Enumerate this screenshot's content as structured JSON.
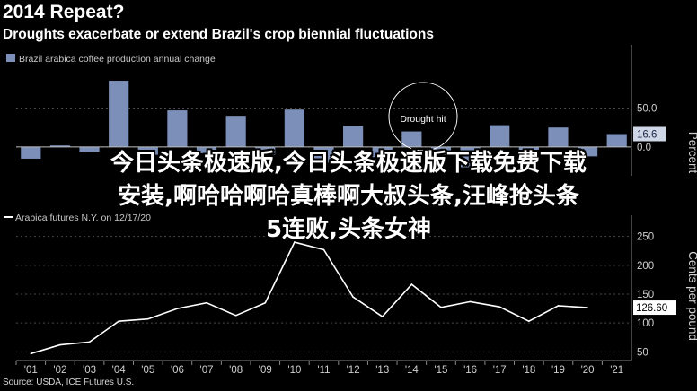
{
  "header": {
    "title": "2014 Repeat?",
    "subtitle": "Droughts exacerbate or extend Brazil's crop biennial fluctuations"
  },
  "source": "Source: USDA, ICE Futures U.S.",
  "overlay_text": {
    "line1": "今日头条极速版,今日头条极速版下载免费下载",
    "line2": "安装,啊哈哈啊哈真棒啊大叔头条,汪峰抢头条",
    "line3": "5连败,头条女神"
  },
  "chart_data": [
    {
      "type": "bar",
      "legend": "Brazil arabica coffee production annual change",
      "categories": [
        "'01",
        "'02",
        "'03",
        "'04",
        "'05",
        "'06",
        "'07",
        "'08",
        "'09",
        "'10",
        "'11",
        "'12",
        "'13",
        "'14",
        "'15",
        "'16",
        "'17",
        "'18",
        "'19",
        "'20",
        "'21"
      ],
      "values": [
        -15,
        2,
        -6,
        85,
        -10,
        47,
        -8,
        40,
        -10,
        48,
        -20,
        27,
        -13,
        20,
        -12,
        -26,
        28,
        -8,
        25,
        -12,
        16.6
      ],
      "ylabel": "Percent",
      "yticks": [
        50,
        0
      ],
      "ylim": [
        -30,
        100
      ],
      "last_value_label": "16.6",
      "annotation": "Drought hit",
      "color": "#7b8fb8"
    },
    {
      "type": "line",
      "legend": "Arabica futures N.Y. on 12/17/20",
      "x": [
        "'01",
        "'02",
        "'03",
        "'04",
        "'05",
        "'06",
        "'07",
        "'08",
        "'09",
        "'10",
        "'11",
        "'12",
        "'13",
        "'14",
        "'15",
        "'16",
        "'17",
        "'18",
        "'19",
        "'20"
      ],
      "values": [
        47,
        62,
        67,
        103,
        107,
        125,
        135,
        113,
        135,
        240,
        227,
        145,
        111,
        167,
        127,
        137,
        128,
        103,
        130,
        126.6
      ],
      "ylabel": "Cents per pound",
      "yticks": [
        50,
        100,
        150,
        200,
        250
      ],
      "ylim": [
        35,
        265
      ],
      "last_value_label": "126.60",
      "color": "#ffffff"
    }
  ],
  "x_ticks": [
    "'01",
    "'02",
    "'03",
    "'04",
    "'05",
    "'06",
    "'07",
    "'08",
    "'09",
    "'10",
    "'11",
    "'12",
    "'13",
    "'14",
    "'15",
    "'16",
    "'17",
    "'18",
    "'19",
    "'20",
    "'21"
  ],
  "colors": {
    "background": "#000000",
    "bar": "#7b8fb8",
    "line": "#ffffff",
    "grid": "#555555"
  }
}
